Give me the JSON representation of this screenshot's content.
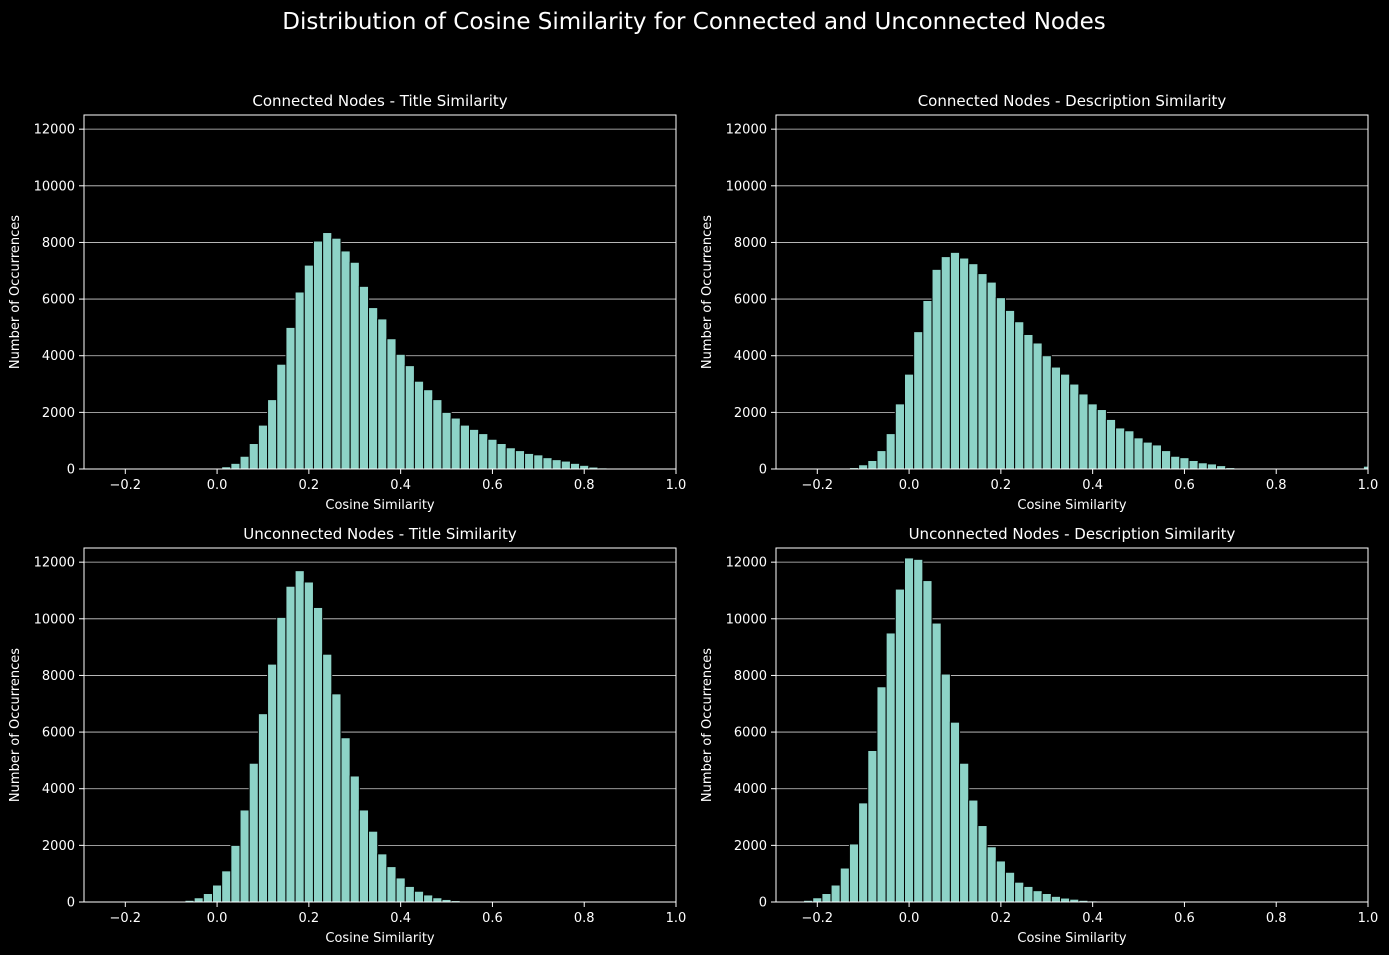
{
  "figure_title": "Distribution of Cosine Similarity for Connected and Unconnected Nodes",
  "colors": {
    "background": "#000000",
    "bar_fill": "#8dd3c7",
    "bar_edge": "#000000",
    "axis": "#ffffff",
    "grid": "#d0d0d0",
    "text": "#ffffff"
  },
  "chart_data": [
    {
      "type": "bar",
      "title": "Connected Nodes - Title Similarity",
      "xlabel": "Cosine Similarity",
      "ylabel": "Number of Occurrences",
      "xlim": [
        -0.29,
        1.0
      ],
      "ylim": [
        0,
        12500
      ],
      "xticks": [
        -0.2,
        0.0,
        0.2,
        0.4,
        0.6,
        0.8,
        1.0
      ],
      "xtick_labels": [
        "−0.2",
        "0.0",
        "0.2",
        "0.4",
        "0.6",
        "0.8",
        "1.0"
      ],
      "yticks": [
        0,
        2000,
        4000,
        6000,
        8000,
        10000,
        12000
      ],
      "ytick_labels": [
        "0",
        "2000",
        "4000",
        "6000",
        "8000",
        "10000",
        "12000"
      ],
      "grid": "y",
      "bin_start": -0.29,
      "bin_width": 0.02,
      "values": [
        0,
        0,
        0,
        0,
        0,
        0,
        0,
        0,
        0,
        0,
        0,
        0,
        0,
        0,
        30,
        80,
        200,
        450,
        900,
        1550,
        2450,
        3700,
        5000,
        6250,
        7200,
        8050,
        8350,
        8150,
        7700,
        7300,
        6450,
        5700,
        5300,
        4600,
        4050,
        3650,
        3100,
        2800,
        2450,
        2000,
        1800,
        1550,
        1400,
        1250,
        1050,
        900,
        750,
        650,
        550,
        500,
        400,
        330,
        280,
        200,
        130,
        70,
        40,
        25,
        15,
        10,
        5,
        5,
        5,
        0,
        0
      ]
    },
    {
      "type": "bar",
      "title": "Connected Nodes - Description Similarity",
      "xlabel": "Cosine Similarity",
      "ylabel": "Number of Occurrences",
      "xlim": [
        -0.29,
        1.0
      ],
      "ylim": [
        0,
        12500
      ],
      "xticks": [
        -0.2,
        0.0,
        0.2,
        0.4,
        0.6,
        0.8,
        1.0
      ],
      "xtick_labels": [
        "−0.2",
        "0.0",
        "0.2",
        "0.4",
        "0.6",
        "0.8",
        "1.0"
      ],
      "yticks": [
        0,
        2000,
        4000,
        6000,
        8000,
        10000,
        12000
      ],
      "ytick_labels": [
        "0",
        "2000",
        "4000",
        "6000",
        "8000",
        "10000",
        "12000"
      ],
      "grid": "y",
      "bin_start": -0.29,
      "bin_width": 0.02,
      "values": [
        0,
        0,
        0,
        0,
        0,
        0,
        10,
        30,
        50,
        150,
        300,
        650,
        1250,
        2300,
        3350,
        4850,
        5950,
        7050,
        7500,
        7650,
        7450,
        7250,
        6900,
        6600,
        6050,
        5600,
        5200,
        4750,
        4450,
        4000,
        3600,
        3350,
        3000,
        2650,
        2300,
        2100,
        1750,
        1450,
        1350,
        1100,
        950,
        850,
        650,
        450,
        400,
        300,
        220,
        180,
        120,
        50,
        20,
        10,
        5,
        5,
        5,
        5,
        5,
        5,
        5,
        5,
        5,
        5,
        5,
        5,
        100
      ]
    },
    {
      "type": "bar",
      "title": "Unconnected Nodes - Title Similarity",
      "xlabel": "Cosine Similarity",
      "ylabel": "Number of Occurrences",
      "xlim": [
        -0.29,
        1.0
      ],
      "ylim": [
        0,
        12500
      ],
      "xticks": [
        -0.2,
        0.0,
        0.2,
        0.4,
        0.6,
        0.8,
        1.0
      ],
      "xtick_labels": [
        "−0.2",
        "0.0",
        "0.2",
        "0.4",
        "0.6",
        "0.8",
        "1.0"
      ],
      "yticks": [
        0,
        2000,
        4000,
        6000,
        8000,
        10000,
        12000
      ],
      "ytick_labels": [
        "0",
        "2000",
        "4000",
        "6000",
        "8000",
        "10000",
        "12000"
      ],
      "grid": "y",
      "bin_start": -0.29,
      "bin_width": 0.02,
      "values": [
        0,
        0,
        0,
        0,
        0,
        0,
        0,
        0,
        0,
        0,
        20,
        60,
        150,
        300,
        600,
        1100,
        2000,
        3250,
        4900,
        6650,
        8400,
        10050,
        11150,
        11700,
        11300,
        10400,
        8750,
        7350,
        5800,
        4450,
        3250,
        2500,
        1700,
        1250,
        850,
        550,
        380,
        250,
        150,
        90,
        50,
        30,
        15,
        10,
        5,
        0,
        0,
        0,
        0,
        0,
        0,
        0,
        0,
        0,
        0,
        0,
        0,
        0,
        0,
        0,
        0,
        0,
        0,
        0,
        0
      ]
    },
    {
      "type": "bar",
      "title": "Unconnected Nodes - Description Similarity",
      "xlabel": "Cosine Similarity",
      "ylabel": "Number of Occurrences",
      "xlim": [
        -0.29,
        1.0
      ],
      "ylim": [
        0,
        12500
      ],
      "xticks": [
        -0.2,
        0.0,
        0.2,
        0.4,
        0.6,
        0.8,
        1.0
      ],
      "xtick_labels": [
        "−0.2",
        "0.0",
        "0.2",
        "0.4",
        "0.6",
        "0.8",
        "1.0"
      ],
      "yticks": [
        0,
        2000,
        4000,
        6000,
        8000,
        10000,
        12000
      ],
      "ytick_labels": [
        "0",
        "2000",
        "4000",
        "6000",
        "8000",
        "10000",
        "12000"
      ],
      "grid": "y",
      "bin_start": -0.29,
      "bin_width": 0.02,
      "values": [
        0,
        0,
        20,
        60,
        150,
        300,
        600,
        1200,
        2050,
        3500,
        5350,
        7600,
        9500,
        11050,
        12150,
        12100,
        11350,
        9850,
        8050,
        6350,
        4900,
        3600,
        2700,
        1950,
        1450,
        1050,
        700,
        550,
        400,
        300,
        200,
        140,
        100,
        60,
        40,
        20,
        10,
        5,
        0,
        0,
        0,
        0,
        0,
        0,
        0,
        0,
        0,
        0,
        0,
        0,
        0,
        0,
        0,
        0,
        0,
        0,
        0,
        0,
        0,
        0,
        0,
        0,
        0,
        0,
        0
      ]
    }
  ]
}
